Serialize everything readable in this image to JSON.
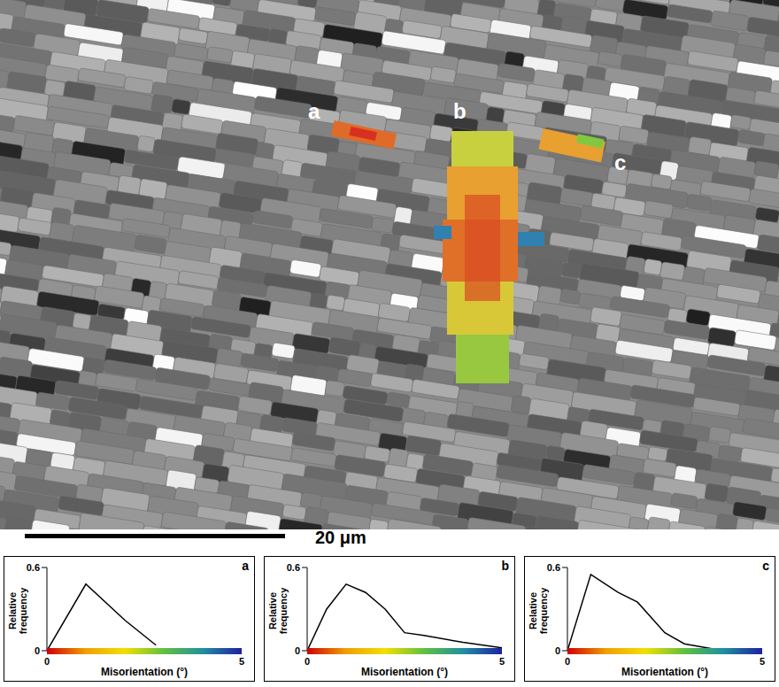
{
  "map": {
    "labels": [
      "a",
      "b",
      "c"
    ],
    "scale_bar": "20 μm"
  },
  "chart_data": [
    {
      "type": "line",
      "title": "a",
      "x_label": "Misorientation (°)",
      "y_label": "Relative frequency",
      "x": [
        0,
        1,
        2,
        2.8
      ],
      "values": [
        0,
        0.48,
        0.22,
        0.04
      ],
      "color": "#000000",
      "xlim": [
        0,
        5
      ],
      "xticks": [
        0,
        5
      ],
      "ylim": [
        0,
        0.6
      ],
      "yticks": [
        0,
        0.6
      ]
    },
    {
      "type": "line",
      "title": "b",
      "x_label": "Misorientation (°)",
      "y_label": "Relative frequency",
      "x": [
        0,
        0.5,
        1,
        1.5,
        2,
        2.5,
        3,
        4,
        5
      ],
      "values": [
        0,
        0.3,
        0.48,
        0.42,
        0.3,
        0.13,
        0.11,
        0.06,
        0.02
      ],
      "color": "#000000",
      "xlim": [
        0,
        5
      ],
      "xticks": [
        0,
        5
      ],
      "ylim": [
        0,
        0.6
      ],
      "yticks": [
        0,
        0.6
      ]
    },
    {
      "type": "line",
      "title": "c",
      "x_label": "Misorientation (°)",
      "y_label": "Relative frequency",
      "x": [
        0,
        0.6,
        1.3,
        1.8,
        2.5,
        3,
        4
      ],
      "values": [
        0,
        0.55,
        0.42,
        0.35,
        0.13,
        0.05,
        0
      ],
      "color": "#000000",
      "xlim": [
        0,
        5
      ],
      "xticks": [
        0,
        5
      ],
      "ylim": [
        0,
        0.6
      ],
      "yticks": [
        0,
        0.6
      ]
    }
  ]
}
